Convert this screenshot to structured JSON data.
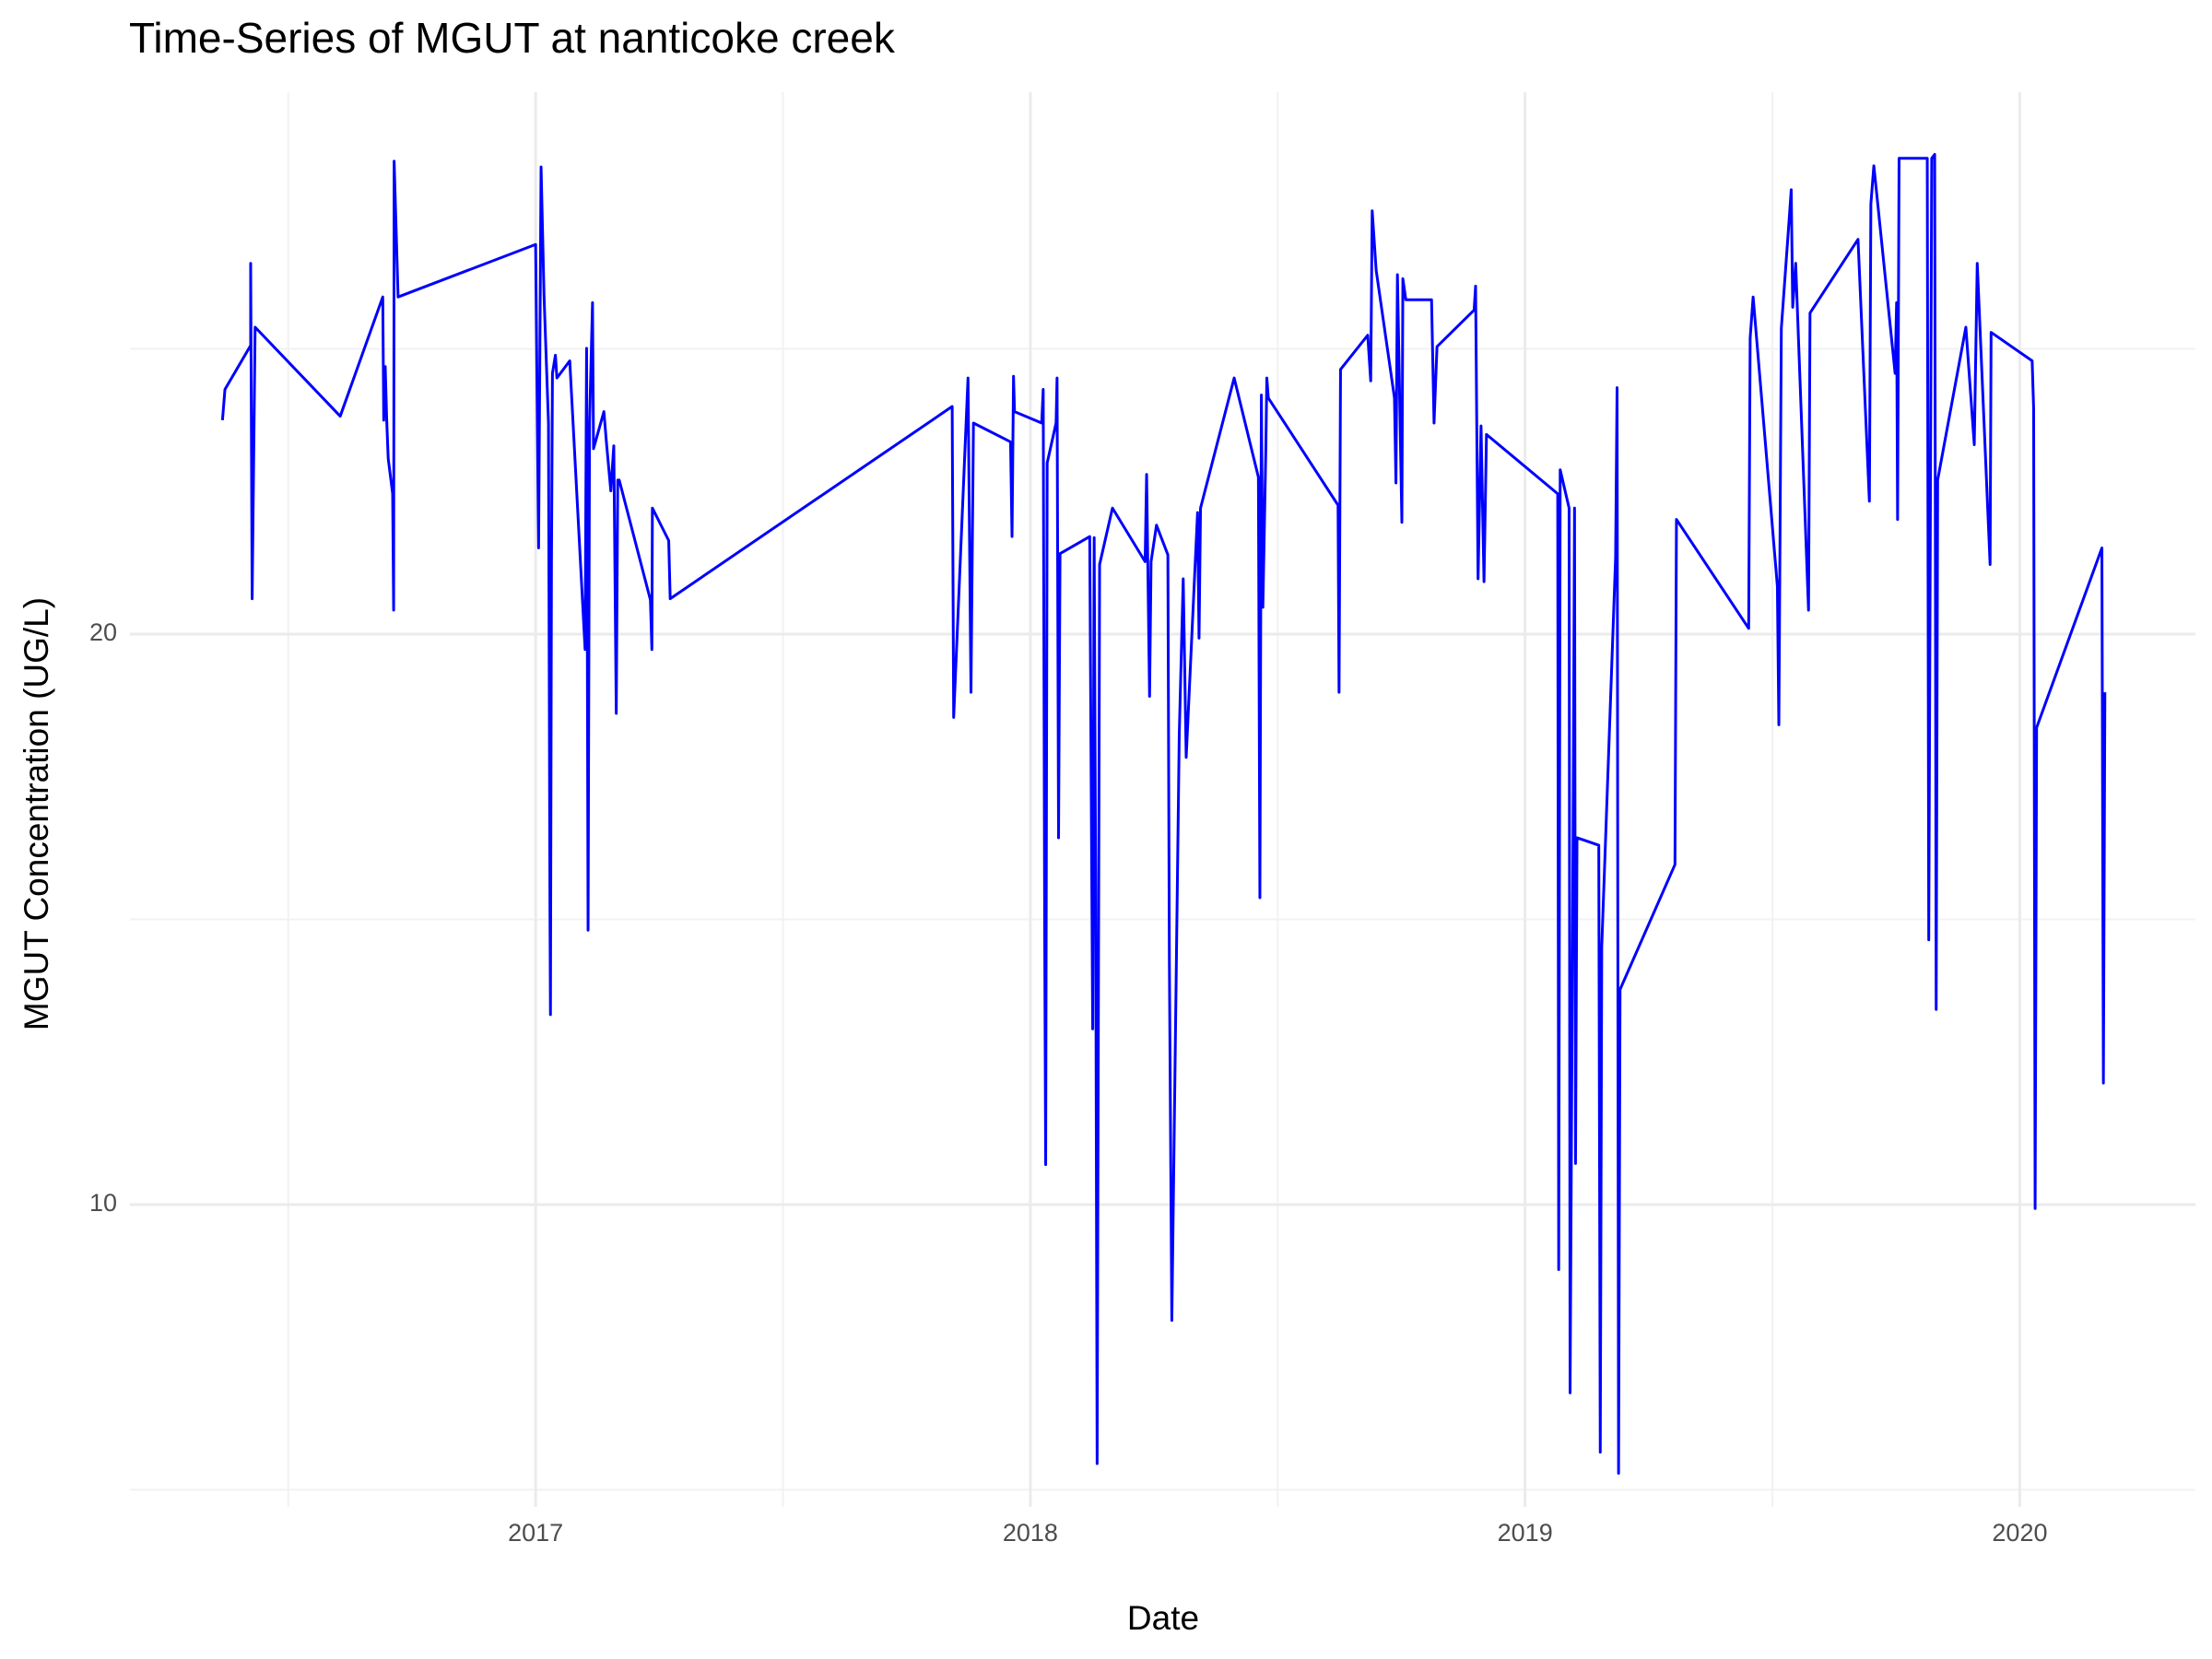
{
  "chart_data": {
    "type": "line",
    "title": "Time-Series of MGUT at nanticoke creek",
    "xlabel": "Date",
    "ylabel": "MGUT Concentration (UG/L)",
    "color": "#0000ff",
    "grid": true,
    "xlim": [
      2016.18,
      2020.355
    ],
    "xticks": [
      2017,
      2018,
      2019,
      2020
    ],
    "x_minor_grid": [
      2016.5,
      2017.5,
      2018.5,
      2019.5
    ],
    "ylim": [
      4.7,
      29.5
    ],
    "yticks": [
      10,
      20
    ],
    "y_minor_grid": [
      5,
      15,
      25
    ],
    "x": [
      2016.367,
      2016.372,
      2016.424,
      2016.424,
      2016.427,
      2016.433,
      2016.605,
      2016.691,
      2016.693,
      2016.696,
      2016.699,
      2016.702,
      2016.711,
      2016.713,
      2016.714,
      2016.722,
      2017.0,
      2017.006,
      2017.011,
      2017.017,
      2017.026,
      2017.029,
      2017.03,
      2017.032,
      2017.034,
      2017.04,
      2017.043,
      2017.069,
      2017.097,
      2017.1,
      2017.103,
      2017.106,
      2017.109,
      2017.115,
      2017.117,
      2017.138,
      2017.143,
      2017.152,
      2017.158,
      2017.163,
      2017.166,
      2017.169,
      2017.232,
      2017.235,
      2017.236,
      2017.269,
      2017.272,
      2017.842,
      2017.845,
      2017.874,
      2017.88,
      2017.885,
      2017.96,
      2017.963,
      2017.966,
      2017.968,
      2018.023,
      2018.026,
      2018.029,
      2018.031,
      2018.034,
      2018.052,
      2018.054,
      2018.057,
      2018.06,
      2018.12,
      2018.126,
      2018.129,
      2018.132,
      2018.135,
      2018.14,
      2018.166,
      2018.232,
      2018.235,
      2018.241,
      2018.244,
      2018.255,
      2018.278,
      2018.281,
      2018.286,
      2018.301,
      2018.309,
      2018.315,
      2018.338,
      2018.341,
      2018.344,
      2018.412,
      2018.461,
      2018.464,
      2018.467,
      2018.47,
      2018.476,
      2018.478,
      2018.481,
      2018.622,
      2018.624,
      2018.627,
      2018.682,
      2018.688,
      2018.691,
      2018.699,
      2018.736,
      2018.739,
      2018.742,
      2018.751,
      2018.753,
      2018.759,
      2018.811,
      2018.816,
      2018.822,
      2018.897,
      2018.9,
      2018.905,
      2018.911,
      2018.917,
      2018.922,
      2019.066,
      2019.068,
      2019.071,
      2019.089,
      2019.091,
      2019.097,
      2019.1,
      2019.102,
      2019.105,
      2019.149,
      2019.152,
      2019.155,
      2019.183,
      2019.186,
      2019.189,
      2019.192,
      2019.303,
      2019.306,
      2019.452,
      2019.455,
      2019.461,
      2019.51,
      2019.513,
      2019.518,
      2019.533,
      2019.538,
      2019.541,
      2019.547,
      2019.573,
      2019.576,
      2019.673,
      2019.696,
      2019.699,
      2019.705,
      2019.748,
      2019.751,
      2019.753,
      2019.756,
      2019.813,
      2019.816,
      2019.822,
      2019.828,
      2019.831,
      2019.834,
      2019.891,
      2019.908,
      2019.914,
      2019.94,
      2019.942,
      2020.025,
      2020.028,
      2020.031,
      2020.034,
      2020.166,
      2020.169,
      2020.172
    ],
    "values": [
      23.75,
      24.29,
      25.06,
      26.5,
      20.62,
      25.38,
      23.82,
      25.91,
      23.75,
      24.69,
      23.75,
      23.08,
      22.46,
      20.42,
      28.29,
      25.91,
      26.83,
      21.51,
      28.19,
      25.93,
      23.7,
      15.14,
      13.33,
      21.22,
      24.57,
      24.89,
      24.49,
      24.79,
      20.22,
      19.73,
      25.01,
      14.81,
      23.7,
      25.81,
      23.25,
      23.9,
      23.37,
      22.51,
      23.3,
      18.61,
      22.7,
      22.7,
      20.6,
      19.73,
      22.21,
      21.64,
      20.62,
      23.99,
      18.54,
      24.49,
      18.98,
      23.7,
      23.37,
      21.71,
      24.52,
      23.9,
      23.7,
      24.29,
      14.76,
      10.7,
      23.0,
      23.7,
      24.49,
      16.43,
      21.41,
      21.71,
      13.08,
      21.69,
      15.63,
      5.46,
      21.22,
      22.21,
      21.27,
      22.8,
      18.91,
      21.27,
      21.91,
      21.39,
      14.27,
      7.97,
      18.24,
      20.97,
      17.84,
      22.13,
      19.93,
      22.21,
      24.49,
      22.75,
      15.38,
      24.19,
      20.47,
      23.25,
      24.49,
      24.14,
      22.26,
      18.98,
      24.64,
      25.24,
      24.44,
      27.42,
      26.38,
      24.14,
      22.65,
      26.3,
      21.96,
      26.23,
      25.86,
      25.86,
      23.7,
      25.04,
      25.68,
      26.1,
      20.97,
      23.65,
      20.92,
      23.5,
      22.46,
      8.86,
      22.88,
      22.21,
      6.7,
      16.38,
      22.21,
      10.72,
      16.43,
      16.3,
      5.66,
      14.52,
      21.34,
      24.32,
      5.29,
      13.77,
      15.96,
      22.01,
      20.1,
      25.19,
      25.91,
      20.84,
      18.41,
      25.36,
      27.17,
      27.79,
      25.73,
      26.5,
      20.42,
      25.63,
      26.92,
      22.33,
      27.54,
      28.21,
      24.57,
      25.81,
      22.01,
      28.34,
      28.34,
      14.64,
      28.34,
      28.41,
      13.42,
      22.7,
      25.38,
      23.32,
      26.5,
      21.22,
      25.29,
      24.79,
      23.95,
      9.93,
      18.36,
      21.51,
      12.13,
      18.98
    ]
  }
}
